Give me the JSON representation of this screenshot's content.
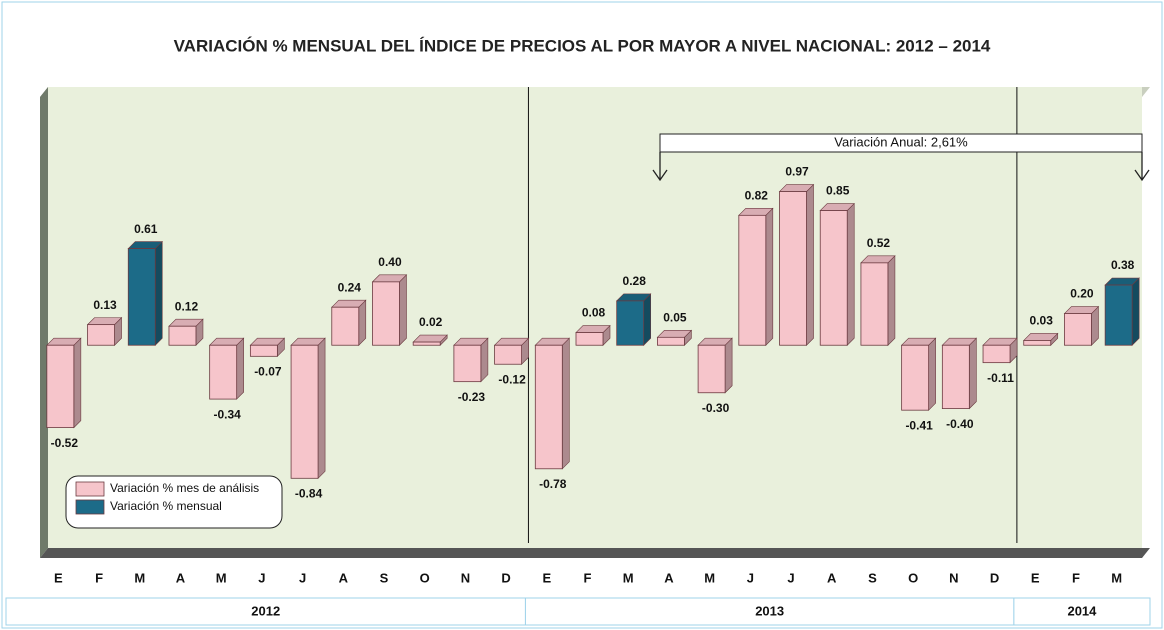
{
  "chart_data": {
    "type": "bar",
    "title": "VARIACIÓN % MENSUAL DEL ÍNDICE DE  PRECIOS AL POR MAYOR A NIVEL NACIONAL: 2012 – 2014",
    "annotation": "Variación Anual: 2,61%",
    "categories": [
      "E",
      "F",
      "M",
      "A",
      "M",
      "J",
      "J",
      "A",
      "S",
      "O",
      "N",
      "D",
      "E",
      "F",
      "M",
      "A",
      "M",
      "J",
      "J",
      "A",
      "S",
      "O",
      "N",
      "D",
      "E",
      "F",
      "M"
    ],
    "years": [
      "2012",
      "2013",
      "2014"
    ],
    "ylim": [
      -1.28,
      1.63
    ],
    "series": [
      {
        "name": "Variación % mes de análisis",
        "color": "#f6c5cb",
        "values": [
          -0.52,
          0.13,
          null,
          0.12,
          -0.34,
          -0.07,
          -0.84,
          0.24,
          0.4,
          0.02,
          -0.23,
          -0.12,
          -0.78,
          0.08,
          null,
          0.05,
          -0.3,
          0.82,
          0.97,
          0.85,
          0.52,
          -0.41,
          -0.4,
          -0.11,
          0.03,
          0.2,
          null
        ],
        "value_labels": [
          "-0.52",
          "0.13",
          null,
          "0.12",
          "-0.34",
          "-0.07",
          "-0.84",
          "0.24",
          "0.40",
          "0.02",
          "-0.23",
          "-0.12",
          "-0.78",
          "0.08",
          null,
          "0.05",
          "-0.30",
          "0.82",
          "0.97",
          "0.85",
          "0.52",
          "-0.41",
          "-0.40",
          "-0.11",
          "0.03",
          "0.20",
          null
        ]
      },
      {
        "name": "Variación % mensual",
        "color": "#1c6b88",
        "values": [
          null,
          null,
          0.61,
          null,
          null,
          null,
          null,
          null,
          null,
          null,
          null,
          null,
          null,
          null,
          0.28,
          null,
          null,
          null,
          null,
          null,
          null,
          null,
          null,
          null,
          null,
          null,
          0.38
        ],
        "value_labels": [
          null,
          null,
          "0.61",
          null,
          null,
          null,
          null,
          null,
          null,
          null,
          null,
          null,
          null,
          null,
          "0.28",
          null,
          null,
          null,
          null,
          null,
          null,
          null,
          null,
          null,
          null,
          null,
          "0.38"
        ]
      }
    ]
  }
}
